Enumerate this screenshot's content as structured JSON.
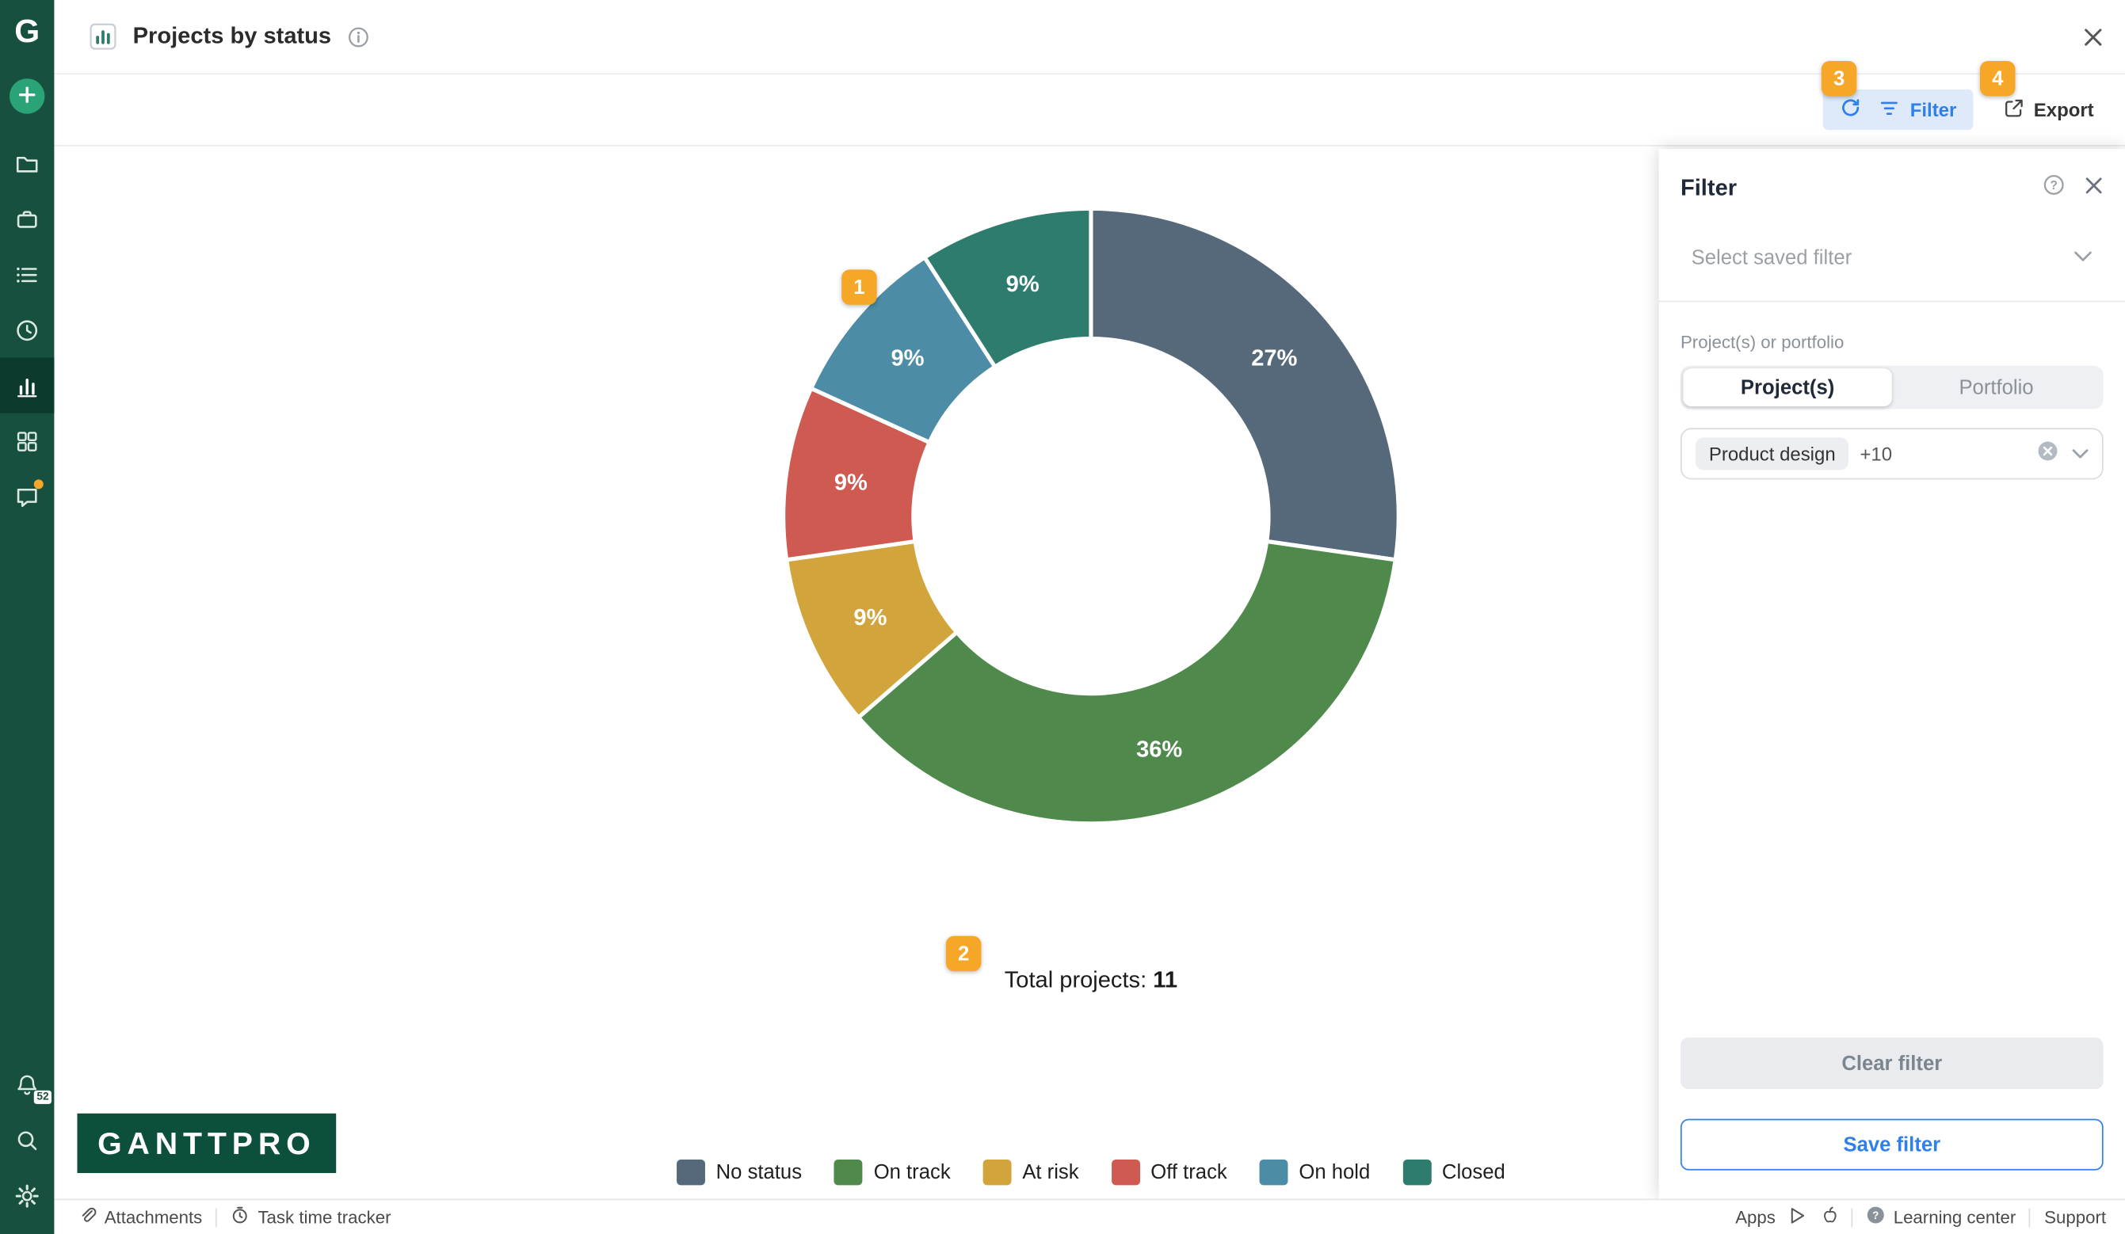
{
  "header": {
    "title": "Projects by status"
  },
  "toolbar": {
    "filter_label": "Filter",
    "export_label": "Export"
  },
  "step_badges": {
    "b1": "1",
    "b2": "2",
    "b3": "3",
    "b4": "4"
  },
  "sidebar": {
    "logo_text": "G",
    "notification_badge": "52"
  },
  "brand": {
    "logo_text": "GANTTPRO"
  },
  "chart_data": {
    "type": "pie",
    "variant": "donut",
    "title": "Projects by status",
    "total_label": "Total projects:",
    "total_value": "11",
    "start_angle_deg": 0,
    "legend_position": "bottom",
    "segments": [
      {
        "label": "No status",
        "value": 3,
        "percent_label": "27%",
        "color": "#56697B"
      },
      {
        "label": "On track",
        "value": 4,
        "percent_label": "36%",
        "color": "#4F8A4C"
      },
      {
        "label": "At risk",
        "value": 1,
        "percent_label": "9%",
        "color": "#D2A43C"
      },
      {
        "label": "Off track",
        "value": 1,
        "percent_label": "9%",
        "color": "#CE5A52"
      },
      {
        "label": "On hold",
        "value": 1,
        "percent_label": "9%",
        "color": "#4C8CA6"
      },
      {
        "label": "Closed",
        "value": 1,
        "percent_label": "9%",
        "color": "#2E7C6E"
      }
    ]
  },
  "filter_panel": {
    "title": "Filter",
    "saved_filter_placeholder": "Select saved filter",
    "section_label": "Project(s) or portfolio",
    "tabs": [
      {
        "label": "Project(s)",
        "active": true
      },
      {
        "label": "Portfolio",
        "active": false
      }
    ],
    "chips": [
      "Product design",
      "+10"
    ],
    "clear_button": "Clear filter",
    "save_button": "Save filter"
  },
  "status_bar": {
    "attachments": "Attachments",
    "task_time_tracker": "Task time tracker",
    "apps": "Apps",
    "learning_center": "Learning center",
    "support": "Support"
  },
  "colors": {
    "sidebar_green": "#17503F",
    "badge_orange": "#F7A728",
    "accent_blue": "#2F80ED"
  }
}
